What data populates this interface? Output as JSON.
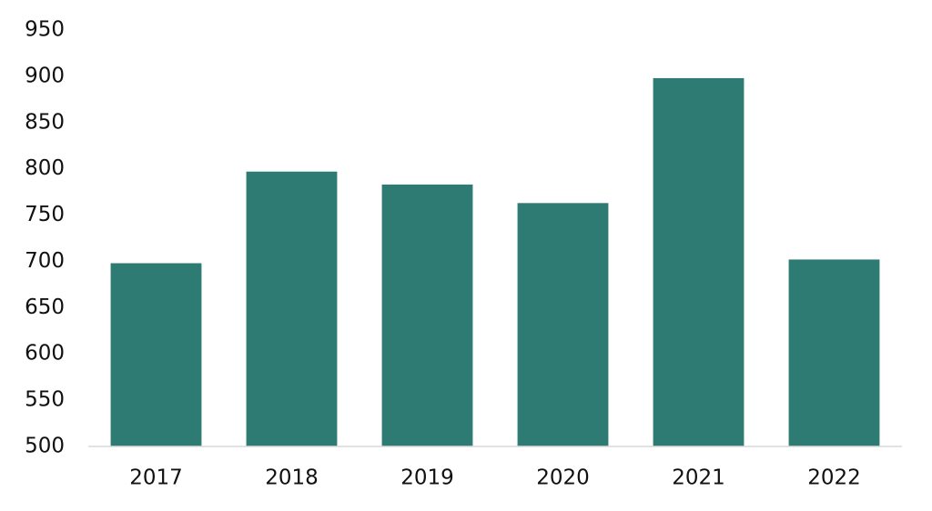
{
  "chart_data": {
    "type": "bar",
    "categories": [
      "2017",
      "2018",
      "2019",
      "2020",
      "2021",
      "2022"
    ],
    "values": [
      698,
      797,
      783,
      763,
      898,
      702
    ],
    "color": "#2e7b73",
    "ylim": [
      500,
      950
    ],
    "yticks": [
      500,
      550,
      600,
      650,
      700,
      750,
      800,
      850,
      900,
      950
    ],
    "grid": false
  }
}
